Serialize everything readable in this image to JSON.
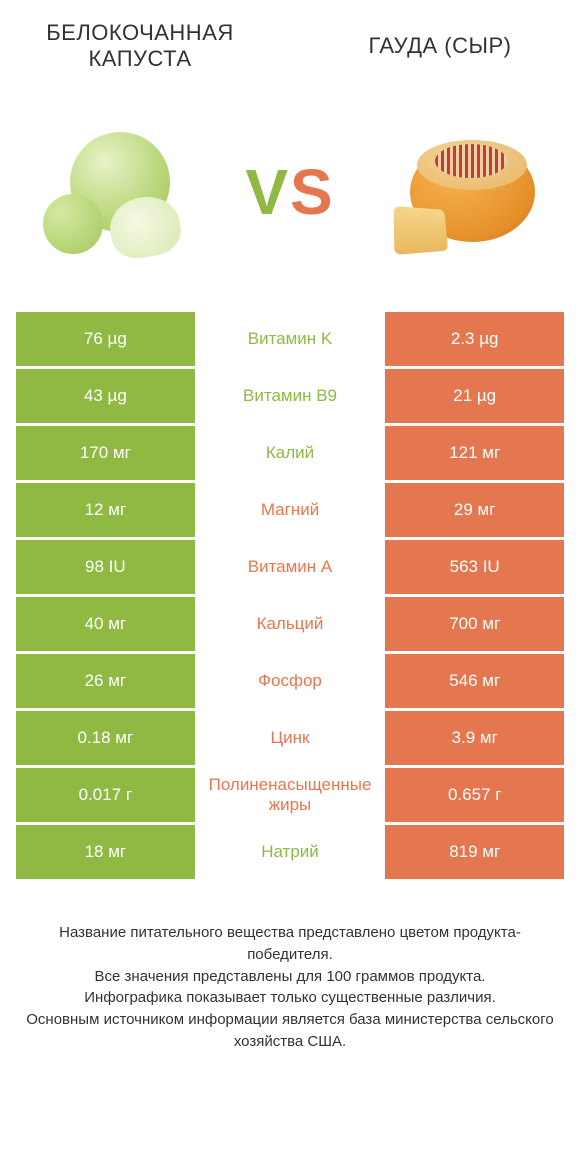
{
  "left_product": "БЕЛОКОЧАННАЯ КАПУСТА",
  "right_product": "ГАУДА (СЫР)",
  "vs_left_letter": "V",
  "vs_right_letter": "S",
  "colors": {
    "green": "#8fb943",
    "orange": "#e4774f",
    "text": "#333333",
    "background": "#ffffff"
  },
  "rows": [
    {
      "left": "76 µg",
      "name": "Витамин K",
      "right": "2.3 µg",
      "winner": "left"
    },
    {
      "left": "43 µg",
      "name": "Витамин B9",
      "right": "21 µg",
      "winner": "left"
    },
    {
      "left": "170 мг",
      "name": "Калий",
      "right": "121 мг",
      "winner": "left"
    },
    {
      "left": "12 мг",
      "name": "Магний",
      "right": "29 мг",
      "winner": "right"
    },
    {
      "left": "98 IU",
      "name": "Витамин A",
      "right": "563 IU",
      "winner": "right"
    },
    {
      "left": "40 мг",
      "name": "Кальций",
      "right": "700 мг",
      "winner": "right"
    },
    {
      "left": "26 мг",
      "name": "Фосфор",
      "right": "546 мг",
      "winner": "right"
    },
    {
      "left": "0.18 мг",
      "name": "Цинк",
      "right": "3.9 мг",
      "winner": "right"
    },
    {
      "left": "0.017 г",
      "name": "Полиненасыщенные жиры",
      "right": "0.657 г",
      "winner": "right"
    },
    {
      "left": "18 мг",
      "name": "Натрий",
      "right": "819 мг",
      "winner": "left"
    }
  ],
  "footer_lines": [
    "Название питательного вещества представлено цветом продукта-победителя.",
    "Все значения представлены для 100 граммов продукта.",
    "Инфографика показывает только существенные различия.",
    "Основным источником информации является база министерства сельского хозяйства США."
  ]
}
